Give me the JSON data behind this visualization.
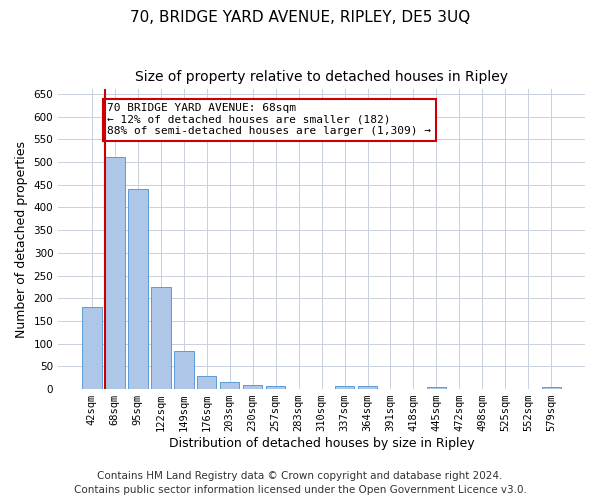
{
  "title": "70, BRIDGE YARD AVENUE, RIPLEY, DE5 3UQ",
  "subtitle": "Size of property relative to detached houses in Ripley",
  "xlabel": "Distribution of detached houses by size in Ripley",
  "ylabel": "Number of detached properties",
  "footer_line1": "Contains HM Land Registry data © Crown copyright and database right 2024.",
  "footer_line2": "Contains public sector information licensed under the Open Government Licence v3.0.",
  "categories": [
    "42sqm",
    "68sqm",
    "95sqm",
    "122sqm",
    "149sqm",
    "176sqm",
    "203sqm",
    "230sqm",
    "257sqm",
    "283sqm",
    "310sqm",
    "337sqm",
    "364sqm",
    "391sqm",
    "418sqm",
    "445sqm",
    "472sqm",
    "498sqm",
    "525sqm",
    "552sqm",
    "579sqm"
  ],
  "values": [
    180,
    510,
    440,
    225,
    83,
    28,
    15,
    10,
    7,
    0,
    0,
    7,
    7,
    0,
    0,
    5,
    0,
    0,
    0,
    0,
    5
  ],
  "bar_color": "#aec6e8",
  "bar_edge_color": "#5b9bd5",
  "highlight_index": 1,
  "highlight_line_color": "#cc0000",
  "ylim": [
    0,
    660
  ],
  "yticks": [
    0,
    50,
    100,
    150,
    200,
    250,
    300,
    350,
    400,
    450,
    500,
    550,
    600,
    650
  ],
  "annotation_line1": "70 BRIDGE YARD AVENUE: 68sqm",
  "annotation_line2": "← 12% of detached houses are smaller (182)",
  "annotation_line3": "88% of semi-detached houses are larger (1,309) →",
  "annotation_box_color": "#ffffff",
  "annotation_box_edge_color": "#cc0000",
  "background_color": "#ffffff",
  "grid_color": "#c8d0df",
  "title_fontsize": 11,
  "subtitle_fontsize": 10,
  "axis_label_fontsize": 9,
  "tick_fontsize": 7.5,
  "annotation_fontsize": 8,
  "footer_fontsize": 7.5
}
